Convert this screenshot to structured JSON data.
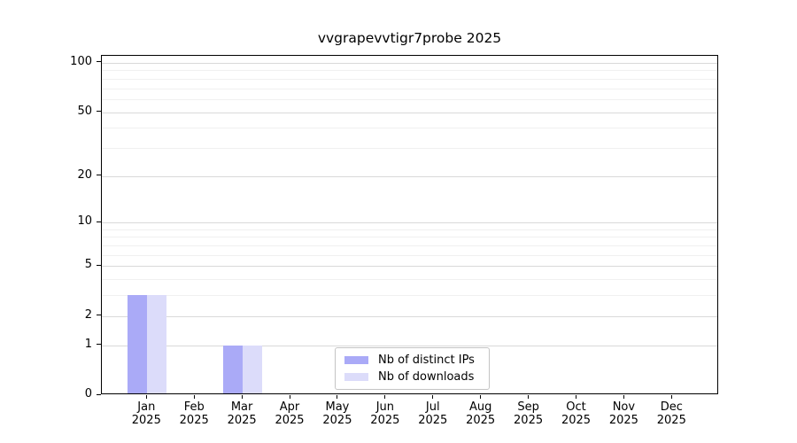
{
  "chart_data": {
    "type": "bar",
    "title": "vvgrapevvtigr7probe 2025",
    "x_categories": [
      "Jan",
      "Feb",
      "Mar",
      "Apr",
      "May",
      "Jun",
      "Jul",
      "Aug",
      "Sep",
      "Oct",
      "Nov",
      "Dec"
    ],
    "x_year_label": "2025",
    "series": [
      {
        "name": "Nb of distinct IPs",
        "color": "#aaaaf7",
        "values": [
          3,
          0,
          1,
          0,
          0,
          0,
          0,
          0,
          0,
          0,
          0,
          0
        ]
      },
      {
        "name": "Nb of downloads",
        "color": "#dcdcfa",
        "values": [
          3,
          0,
          1,
          0,
          0,
          0,
          0,
          0,
          0,
          0,
          0,
          0
        ]
      }
    ],
    "y_axis": {
      "scale": "log10(1+y)",
      "tick_values": [
        0,
        1,
        2,
        5,
        10,
        20,
        50,
        100
      ],
      "minor_gridlines": [
        3,
        4,
        6,
        7,
        8,
        9,
        30,
        40,
        60,
        70,
        80,
        90
      ],
      "ylim": [
        0,
        110
      ]
    },
    "legend": {
      "position": "bottom-center"
    }
  }
}
